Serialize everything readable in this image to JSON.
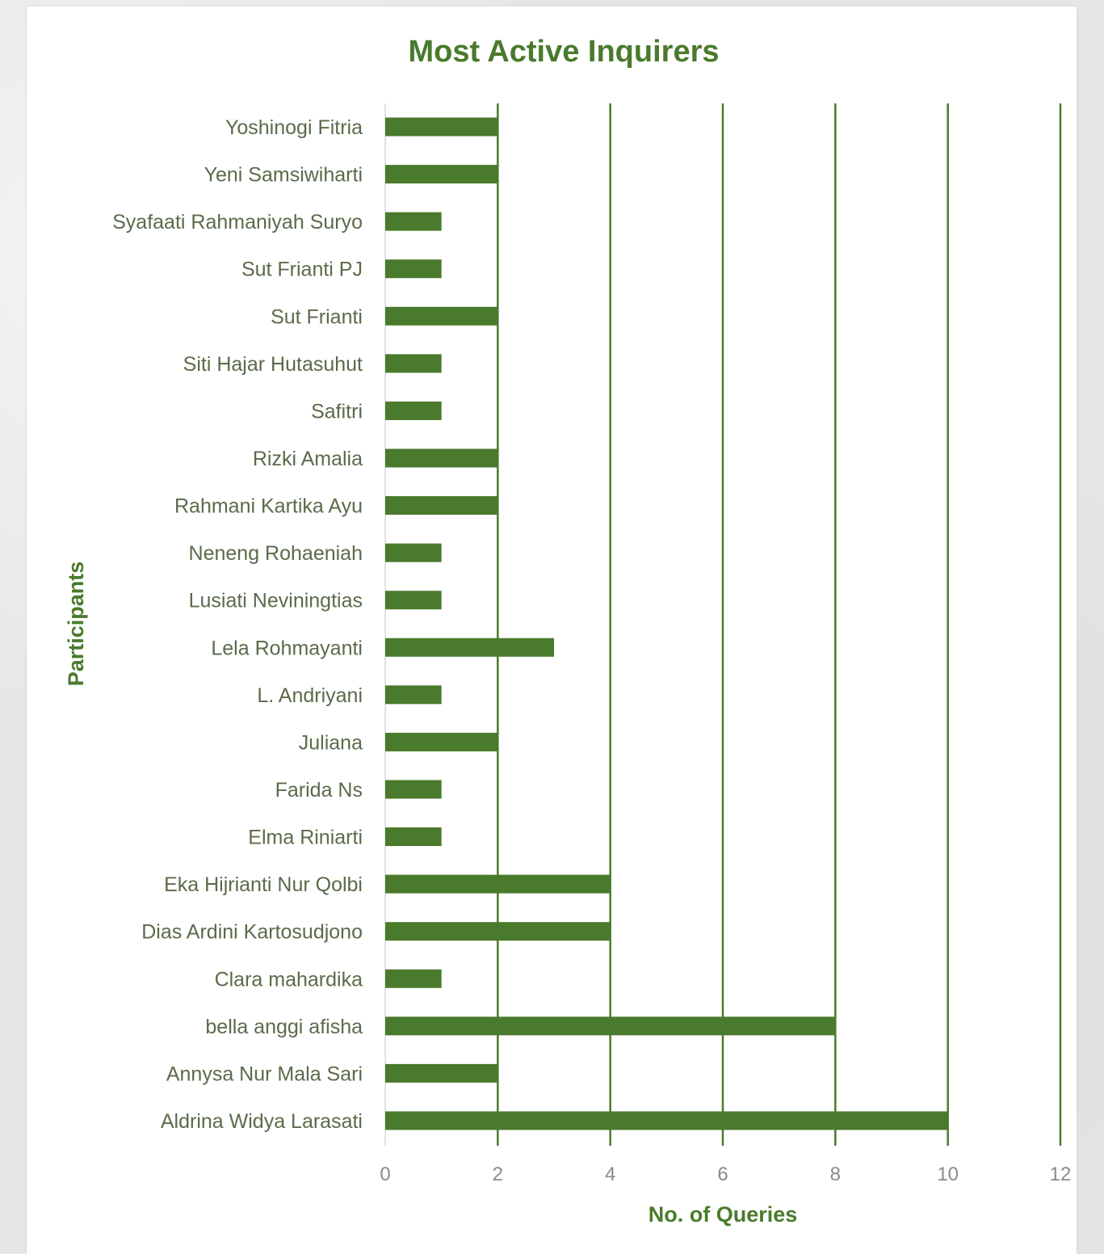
{
  "chart_data": {
    "type": "bar",
    "orientation": "horizontal",
    "title": "Most Active Inquirers",
    "xlabel": "No. of Queries",
    "ylabel": "Participants",
    "xlim": [
      0,
      12
    ],
    "x_ticks": [
      0,
      2,
      4,
      6,
      8,
      10,
      12
    ],
    "grid": true,
    "color": "#4a7a2c",
    "text_color": "#4a7a2c",
    "categories": [
      "Yoshinogi Fitria",
      "Yeni Samsiwiharti",
      "Syafaati Rahmaniyah Suryo",
      "Sut Frianti PJ",
      "Sut Frianti",
      "Siti Hajar Hutasuhut",
      "Safitri",
      "Rizki Amalia",
      "Rahmani Kartika Ayu",
      "Neneng Rohaeniah",
      "Lusiati Neviningtias",
      "Lela Rohmayanti",
      "L. Andriyani",
      "Juliana",
      "Farida Ns",
      "Elma Riniarti",
      "Eka Hijrianti Nur Qolbi",
      "Dias Ardini Kartosudjono",
      "Clara mahardika",
      "bella anggi afisha",
      "Annysa Nur Mala Sari",
      "Aldrina Widya Larasati"
    ],
    "values": [
      2,
      2,
      1,
      1,
      2,
      1,
      1,
      2,
      2,
      1,
      1,
      3,
      1,
      2,
      1,
      1,
      4,
      4,
      1,
      8,
      2,
      10
    ]
  }
}
